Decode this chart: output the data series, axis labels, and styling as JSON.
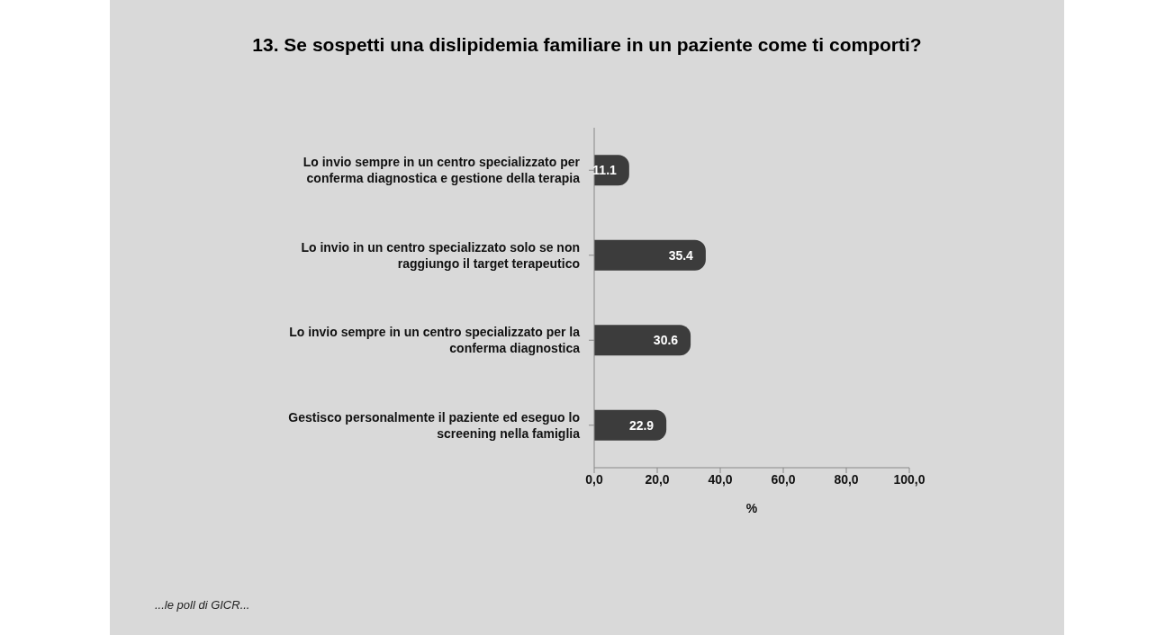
{
  "chart_data": {
    "type": "bar",
    "orientation": "horizontal",
    "title": "13. Se sospetti una dislipidemia familiare in un paziente come ti comporti?",
    "categories": [
      "Lo invio sempre in un centro specializzato per conferma diagnostica e gestione della terapia",
      "Lo invio in un centro specializzato solo se non raggiungo il target terapeutico",
      "Lo invio sempre in un centro specializzato per la conferma diagnostica",
      "Gestisco personalmente il paziente ed eseguo lo screening nella famiglia"
    ],
    "values": [
      11.1,
      35.4,
      30.6,
      22.9
    ],
    "color": "#3c3c3c",
    "data_labels": true,
    "xlim": [
      0,
      100
    ],
    "xticks": [
      {
        "value": 0,
        "label": "0,0"
      },
      {
        "value": 20,
        "label": "20,0"
      },
      {
        "value": 40,
        "label": "40,0"
      },
      {
        "value": 60,
        "label": "60,0"
      },
      {
        "value": 80,
        "label": "80,0"
      },
      {
        "value": 100,
        "label": "100,0"
      }
    ],
    "xlabel": "%",
    "annotations": [
      "...le poll di GICR..."
    ]
  }
}
